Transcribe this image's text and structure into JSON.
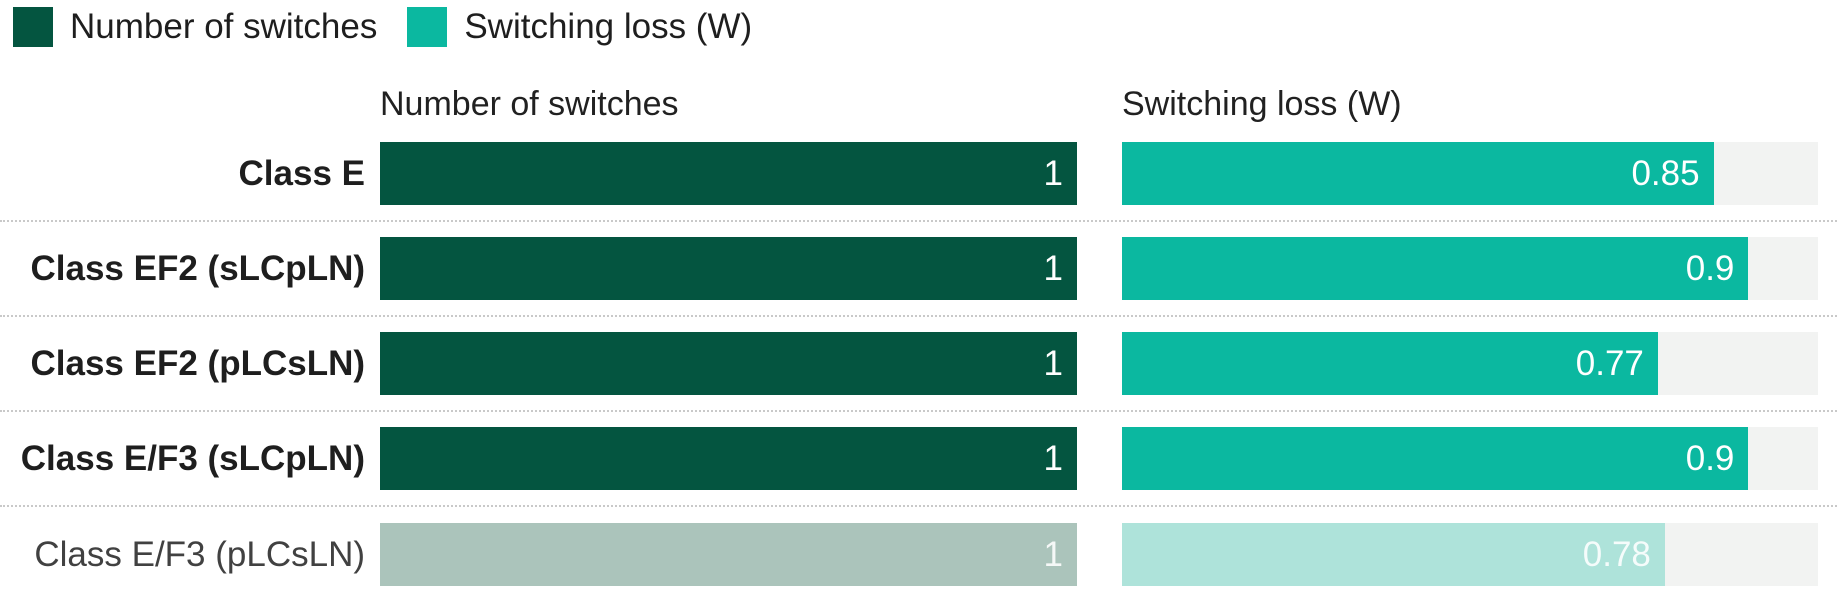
{
  "legend": {
    "items": [
      {
        "label": "Number of switches",
        "color": "#045540"
      },
      {
        "label": "Switching loss (W)",
        "color": "#0bb8a0"
      }
    ]
  },
  "columns": [
    {
      "header": "Number of switches"
    },
    {
      "header": "Switching loss (W)"
    }
  ],
  "chart_data": {
    "type": "bar",
    "orientation": "horizontal",
    "legend_position": "top-left",
    "value_label_position": "inside-end",
    "grid": "dotted-row-separators",
    "categories": [
      "Class E",
      "Class EF2 (sLCpLN)",
      "Class EF2 (pLCsLN)",
      "Class E/F3 (sLCpLN)",
      "Class E/F3 (pLCsLN)"
    ],
    "series": [
      {
        "name": "Number of switches",
        "values": [
          1,
          1,
          1,
          1,
          1
        ],
        "labels": [
          "1",
          "1",
          "1",
          "1",
          "1"
        ],
        "axis_max": 1,
        "color": "#045540",
        "muted_color": "#abc4bb"
      },
      {
        "name": "Switching loss (W)",
        "values": [
          0.85,
          0.9,
          0.77,
          0.9,
          0.78
        ],
        "labels": [
          "0.85",
          "0.9",
          "0.77",
          "0.9",
          "0.78"
        ],
        "axis_max": 1,
        "color": "#0bb8a0",
        "muted_color": "#aee3da"
      }
    ],
    "muted_rows": [
      4
    ],
    "track_color": "#f2f3f2"
  }
}
